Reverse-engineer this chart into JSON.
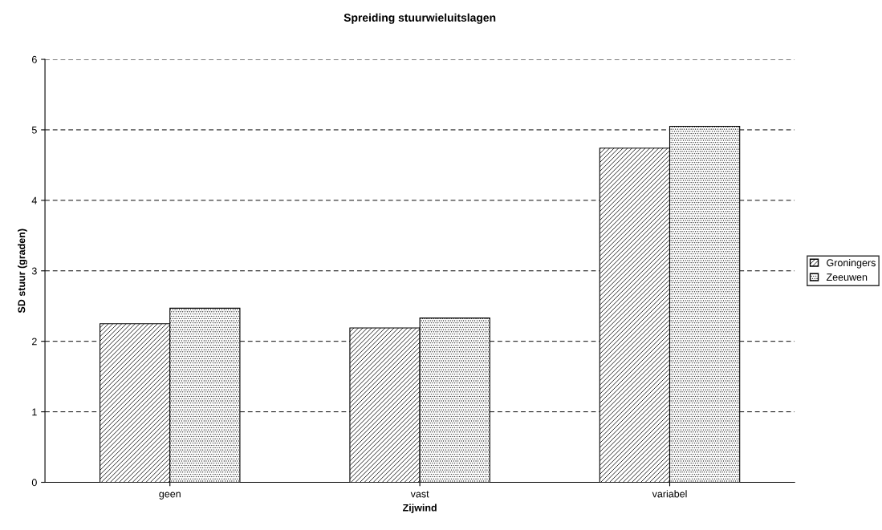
{
  "chart_data": {
    "type": "bar",
    "title": "Spreiding stuurwieluitslagen",
    "xlabel": "Zijwind",
    "ylabel": "SD stuur (graden)",
    "categories": [
      "geen",
      "vast",
      "variabel"
    ],
    "series": [
      {
        "name": "Groningers",
        "color": "#000000",
        "values": [
          2.25,
          2.19,
          4.74
        ]
      },
      {
        "name": "Zeeuwen",
        "color": "#000000",
        "values": [
          2.47,
          2.33,
          5.05
        ]
      }
    ],
    "ylim": [
      0,
      6
    ],
    "yticks": [
      0,
      1,
      2,
      3,
      4,
      5,
      6
    ],
    "grid": "y",
    "legend": "right"
  }
}
